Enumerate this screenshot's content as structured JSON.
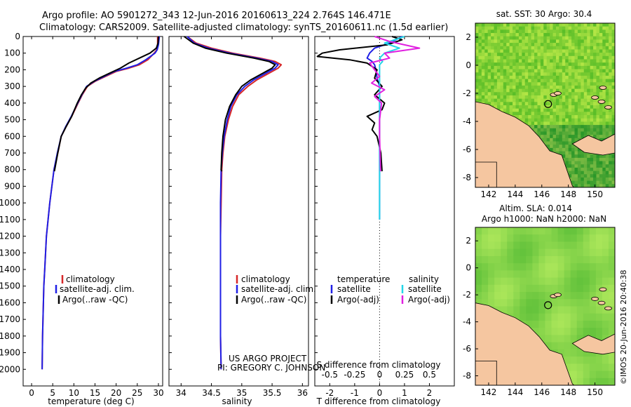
{
  "header": {
    "line1": "Argo profile: AO 5901272_343 12-Jun-2016 20160613_224 2.764S 146.471E",
    "line2": "Climatology: CARS2009. Satellite-adjusted climatology: synTS_20160611.nc (1.5d earlier)"
  },
  "footer": {
    "project": "US ARGO PROJECT",
    "pi": "PI: GREGORY C. JOHNSON",
    "stamp": "©IMOS 20-Jun-2016 20:40:38"
  },
  "colors": {
    "climatology": "#d62728",
    "satellite": "#1f1fe6",
    "argo": "#000000",
    "sal_satellite": "#22d6e8",
    "sal_argo": "#e020e0",
    "land": "#f5c6a0",
    "ocean": "#3cbf3c"
  },
  "chart_data": [
    {
      "type": "line",
      "name": "temperature-profile",
      "xlabel": "temperature (deg C)",
      "ylabel": "",
      "xlim": [
        -2,
        31
      ],
      "ylim": [
        2100,
        0
      ],
      "xticks": [
        0,
        5,
        10,
        15,
        20,
        25,
        30
      ],
      "yticks": [
        0,
        100,
        200,
        300,
        400,
        500,
        600,
        700,
        800,
        900,
        1000,
        1100,
        1200,
        1300,
        1400,
        1500,
        1600,
        1700,
        1800,
        1900,
        2000
      ],
      "legend": [
        "climatology",
        "satellite-adj. clim.",
        "Argo(..raw -QC)"
      ],
      "series": [
        {
          "name": "climatology",
          "x": [
            29.8,
            29.8,
            29.6,
            29,
            27.5,
            25.5,
            23,
            20,
            17.5,
            15,
            13.2,
            12,
            11,
            9.5,
            8.2,
            7,
            6.2,
            5.3,
            4.8,
            4.3,
            3.9,
            3.5,
            3.3,
            3.1,
            2.9,
            2.8,
            2.7,
            2.6,
            2.5
          ],
          "y": [
            0,
            50,
            80,
            100,
            140,
            170,
            190,
            210,
            240,
            270,
            300,
            350,
            400,
            480,
            540,
            600,
            700,
            800,
            900,
            1000,
            1100,
            1200,
            1300,
            1400,
            1500,
            1600,
            1700,
            1800,
            2000
          ]
        },
        {
          "name": "satellite-adj. clim.",
          "x": [
            30.2,
            30,
            29.7,
            29.2,
            27,
            25,
            22.5,
            19.6,
            17.2,
            14.8,
            13,
            11.9,
            10.9,
            9.4,
            8.1,
            7,
            6.1,
            5.3,
            4.8,
            4.3,
            3.9,
            3.5,
            3.3,
            3.1,
            2.9,
            2.8,
            2.7,
            2.6,
            2.5
          ],
          "y": [
            0,
            50,
            80,
            100,
            140,
            170,
            190,
            210,
            240,
            270,
            300,
            350,
            400,
            480,
            540,
            600,
            700,
            800,
            900,
            1000,
            1100,
            1200,
            1300,
            1400,
            1500,
            1600,
            1700,
            1800,
            2000
          ]
        },
        {
          "name": "Argo(..raw -QC)",
          "x": [
            30,
            29.9,
            29.5,
            28,
            25.5,
            23,
            21,
            18.5,
            16,
            14,
            12.8,
            11.8,
            10.8,
            9.5,
            8.2,
            7,
            6.2,
            5.4
          ],
          "y": [
            0,
            40,
            70,
            100,
            130,
            160,
            190,
            220,
            250,
            280,
            310,
            350,
            400,
            480,
            540,
            600,
            700,
            810
          ]
        }
      ]
    },
    {
      "type": "line",
      "name": "salinity-profile",
      "xlabel": "salinity",
      "xlim": [
        33.8,
        36.1
      ],
      "ylim": [
        2100,
        0
      ],
      "xticks": [
        34,
        34.5,
        35,
        35.5,
        36
      ],
      "legend": [
        "climatology",
        "satellite-adj. clim.",
        "Argo(..raw -QC)"
      ],
      "series": [
        {
          "name": "climatology",
          "x": [
            34.1,
            34.25,
            34.5,
            34.85,
            35.3,
            35.55,
            35.65,
            35.6,
            35.45,
            35.25,
            35.1,
            34.95,
            34.85,
            34.78,
            34.72,
            34.69,
            34.67,
            34.66,
            34.65,
            34.65,
            34.65,
            34.65,
            34.66
          ],
          "y": [
            0,
            40,
            70,
            100,
            130,
            150,
            170,
            190,
            220,
            260,
            300,
            350,
            420,
            500,
            600,
            700,
            800,
            1000,
            1200,
            1400,
            1600,
            1800,
            2000
          ]
        },
        {
          "name": "satellite-adj. clim.",
          "x": [
            34.1,
            34.22,
            34.45,
            34.8,
            35.25,
            35.5,
            35.6,
            35.55,
            35.4,
            35.2,
            35.05,
            34.92,
            34.82,
            34.76,
            34.71,
            34.68,
            34.66,
            34.65,
            34.65,
            34.65,
            34.65,
            34.65,
            34.66
          ],
          "y": [
            0,
            40,
            70,
            100,
            130,
            150,
            170,
            190,
            220,
            260,
            300,
            350,
            420,
            500,
            600,
            700,
            800,
            1000,
            1200,
            1400,
            1600,
            1800,
            2000
          ]
        },
        {
          "name": "Argo(..raw -QC)",
          "x": [
            34.05,
            34.2,
            34.4,
            34.75,
            35.2,
            35.45,
            35.55,
            35.5,
            35.35,
            35.15,
            35,
            34.9,
            34.8,
            34.73,
            34.69,
            34.67,
            34.66,
            34.67
          ],
          "y": [
            0,
            40,
            70,
            100,
            130,
            150,
            170,
            190,
            220,
            260,
            300,
            350,
            420,
            500,
            600,
            700,
            800,
            810
          ]
        }
      ]
    },
    {
      "type": "line",
      "name": "difference-profile",
      "xlabel": "T difference from climatology",
      "xlabel_top": "S difference from climatology",
      "xlim": [
        -2.6,
        3
      ],
      "ylim": [
        2100,
        0
      ],
      "xticks": [
        -2,
        -1,
        0,
        1,
        2
      ],
      "xticks_sal": [
        -0.5,
        -0.25,
        0,
        0.25,
        0.5
      ],
      "xticks_sal_labels": [
        "-0.5",
        "-0.25",
        "0",
        "0.25",
        "0.5"
      ],
      "legend_temp_title": "temperature",
      "legend_sal_title": "salinity",
      "legend": [
        "satellite",
        "Argo(-adj)",
        "satellite",
        "Argo(-adj)"
      ],
      "series": [
        {
          "name": "T satellite",
          "x": [
            0.9,
            0.4,
            -0.2,
            -0.4,
            -0.5,
            -0.3,
            -0.2,
            -0.15,
            -0.1,
            0,
            0,
            0,
            0,
            0,
            0,
            0,
            0,
            0
          ],
          "y": [
            0,
            40,
            70,
            100,
            130,
            150,
            170,
            200,
            250,
            300,
            400,
            500,
            600,
            700,
            800,
            900,
            1000,
            1100
          ]
        },
        {
          "name": "T Argo(-adj)",
          "x": [
            0.5,
            0.9,
            0.3,
            -1.6,
            -2.3,
            -2.5,
            -1.2,
            -0.5,
            -0.1,
            -0.2,
            0.1,
            -0.2,
            0.2,
            0.1,
            -0.5,
            -0.2,
            -0.3,
            -0.1,
            0.05,
            0.1
          ],
          "y": [
            0,
            20,
            50,
            80,
            100,
            120,
            140,
            160,
            200,
            250,
            300,
            350,
            400,
            440,
            480,
            520,
            560,
            600,
            700,
            810
          ]
        },
        {
          "name": "S satellite",
          "x": [
            0.25,
            0.05,
            0.2,
            0.05,
            0.0,
            0.03,
            0.0,
            0.0,
            0.0,
            0.0,
            0.0,
            0.0,
            0.0,
            0.0,
            0.0,
            0.0,
            0.0,
            0.0
          ],
          "y": [
            0,
            40,
            70,
            100,
            130,
            150,
            170,
            200,
            250,
            300,
            400,
            500,
            600,
            700,
            800,
            900,
            1000,
            1100
          ]
        },
        {
          "name": "S Argo(-adj)",
          "x": [
            -0.05,
            0.1,
            0.4,
            0.05,
            0.1,
            -0.1,
            -0.05,
            0.0,
            -0.08,
            0.05,
            -0.05,
            0.02,
            0.0,
            0.0,
            0.01
          ],
          "y": [
            0,
            30,
            70,
            100,
            130,
            160,
            200,
            240,
            280,
            320,
            360,
            400,
            500,
            600,
            810
          ]
        }
      ]
    },
    {
      "type": "heatmap",
      "name": "sst-map",
      "title": "sat. SST: 30 Argo: 30.4",
      "xlim": [
        141,
        151.5
      ],
      "ylim": [
        -8.7,
        3
      ],
      "xticks": [
        142,
        144,
        146,
        148,
        150
      ],
      "yticks": [
        2,
        0,
        -2,
        -4,
        -6,
        -8
      ],
      "marker": {
        "lon": 146.471,
        "lat": -2.764
      }
    },
    {
      "type": "heatmap",
      "name": "sla-map",
      "title_line1": "Altim. SLA: 0.014",
      "title_line2": "Argo h1000: NaN h2000: NaN",
      "xlim": [
        141,
        151.5
      ],
      "ylim": [
        -8.7,
        3
      ],
      "xticks": [
        142,
        144,
        146,
        148,
        150
      ],
      "yticks": [
        2,
        0,
        -2,
        -4,
        -6,
        -8
      ],
      "marker": {
        "lon": 146.471,
        "lat": -2.764
      }
    }
  ]
}
